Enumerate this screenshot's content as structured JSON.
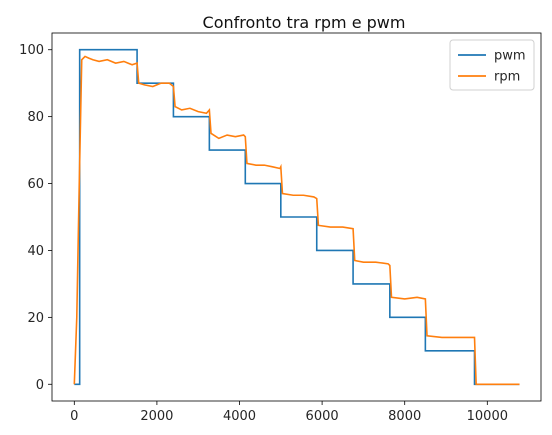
{
  "chart_data": {
    "type": "line",
    "title": "Confronto tra rpm e pwm",
    "xlabel": "",
    "ylabel": "",
    "xlim": [
      -540,
      11300
    ],
    "ylim": [
      -5,
      105
    ],
    "x_ticks": [
      0,
      2000,
      4000,
      6000,
      8000,
      10000
    ],
    "y_ticks": [
      0,
      20,
      40,
      60,
      80,
      100
    ],
    "grid": false,
    "legend_position": "top-right",
    "series": [
      {
        "name": "pwm",
        "color": "#1f77b4",
        "x": [
          0,
          130,
          130,
          1520,
          1520,
          2400,
          2400,
          3270,
          3270,
          4140,
          4140,
          5000,
          5000,
          5870,
          5870,
          6750,
          6750,
          7640,
          7640,
          8500,
          8500,
          9690,
          9690,
          10780
        ],
        "y": [
          0,
          0,
          100,
          100,
          90,
          90,
          80,
          80,
          70,
          70,
          60,
          60,
          50,
          50,
          40,
          40,
          30,
          30,
          20,
          20,
          10,
          10,
          0,
          0
        ]
      },
      {
        "name": "rpm",
        "color": "#ff7f0e",
        "x": [
          0,
          60,
          120,
          180,
          260,
          350,
          450,
          600,
          800,
          1000,
          1200,
          1400,
          1520,
          1560,
          1700,
          1900,
          2100,
          2300,
          2400,
          2440,
          2600,
          2800,
          3000,
          3200,
          3270,
          3310,
          3500,
          3700,
          3900,
          4100,
          4140,
          4180,
          4400,
          4600,
          4800,
          4980,
          5000,
          5040,
          5300,
          5550,
          5800,
          5870,
          5910,
          6200,
          6500,
          6750,
          6790,
          7000,
          7300,
          7600,
          7640,
          7680,
          8000,
          8300,
          8500,
          8540,
          8900,
          9300,
          9650,
          9690,
          9730,
          10000,
          10400,
          10780
        ],
        "y": [
          0,
          20,
          60,
          97,
          98,
          97.5,
          97,
          96.5,
          97,
          96,
          96.5,
          95.5,
          96,
          90,
          89.5,
          89,
          90,
          90,
          89,
          83,
          82,
          82.5,
          81.5,
          81,
          82,
          75,
          73.5,
          74.5,
          74,
          74.5,
          74,
          66,
          65.5,
          65.5,
          65,
          64.5,
          65,
          57,
          56.5,
          56.5,
          56,
          55.5,
          47.5,
          47,
          47,
          46.5,
          37,
          36.5,
          36.5,
          36,
          35.5,
          26,
          25.5,
          26,
          25.5,
          14.5,
          14,
          14,
          14,
          14,
          0,
          0,
          0,
          0
        ]
      }
    ]
  }
}
